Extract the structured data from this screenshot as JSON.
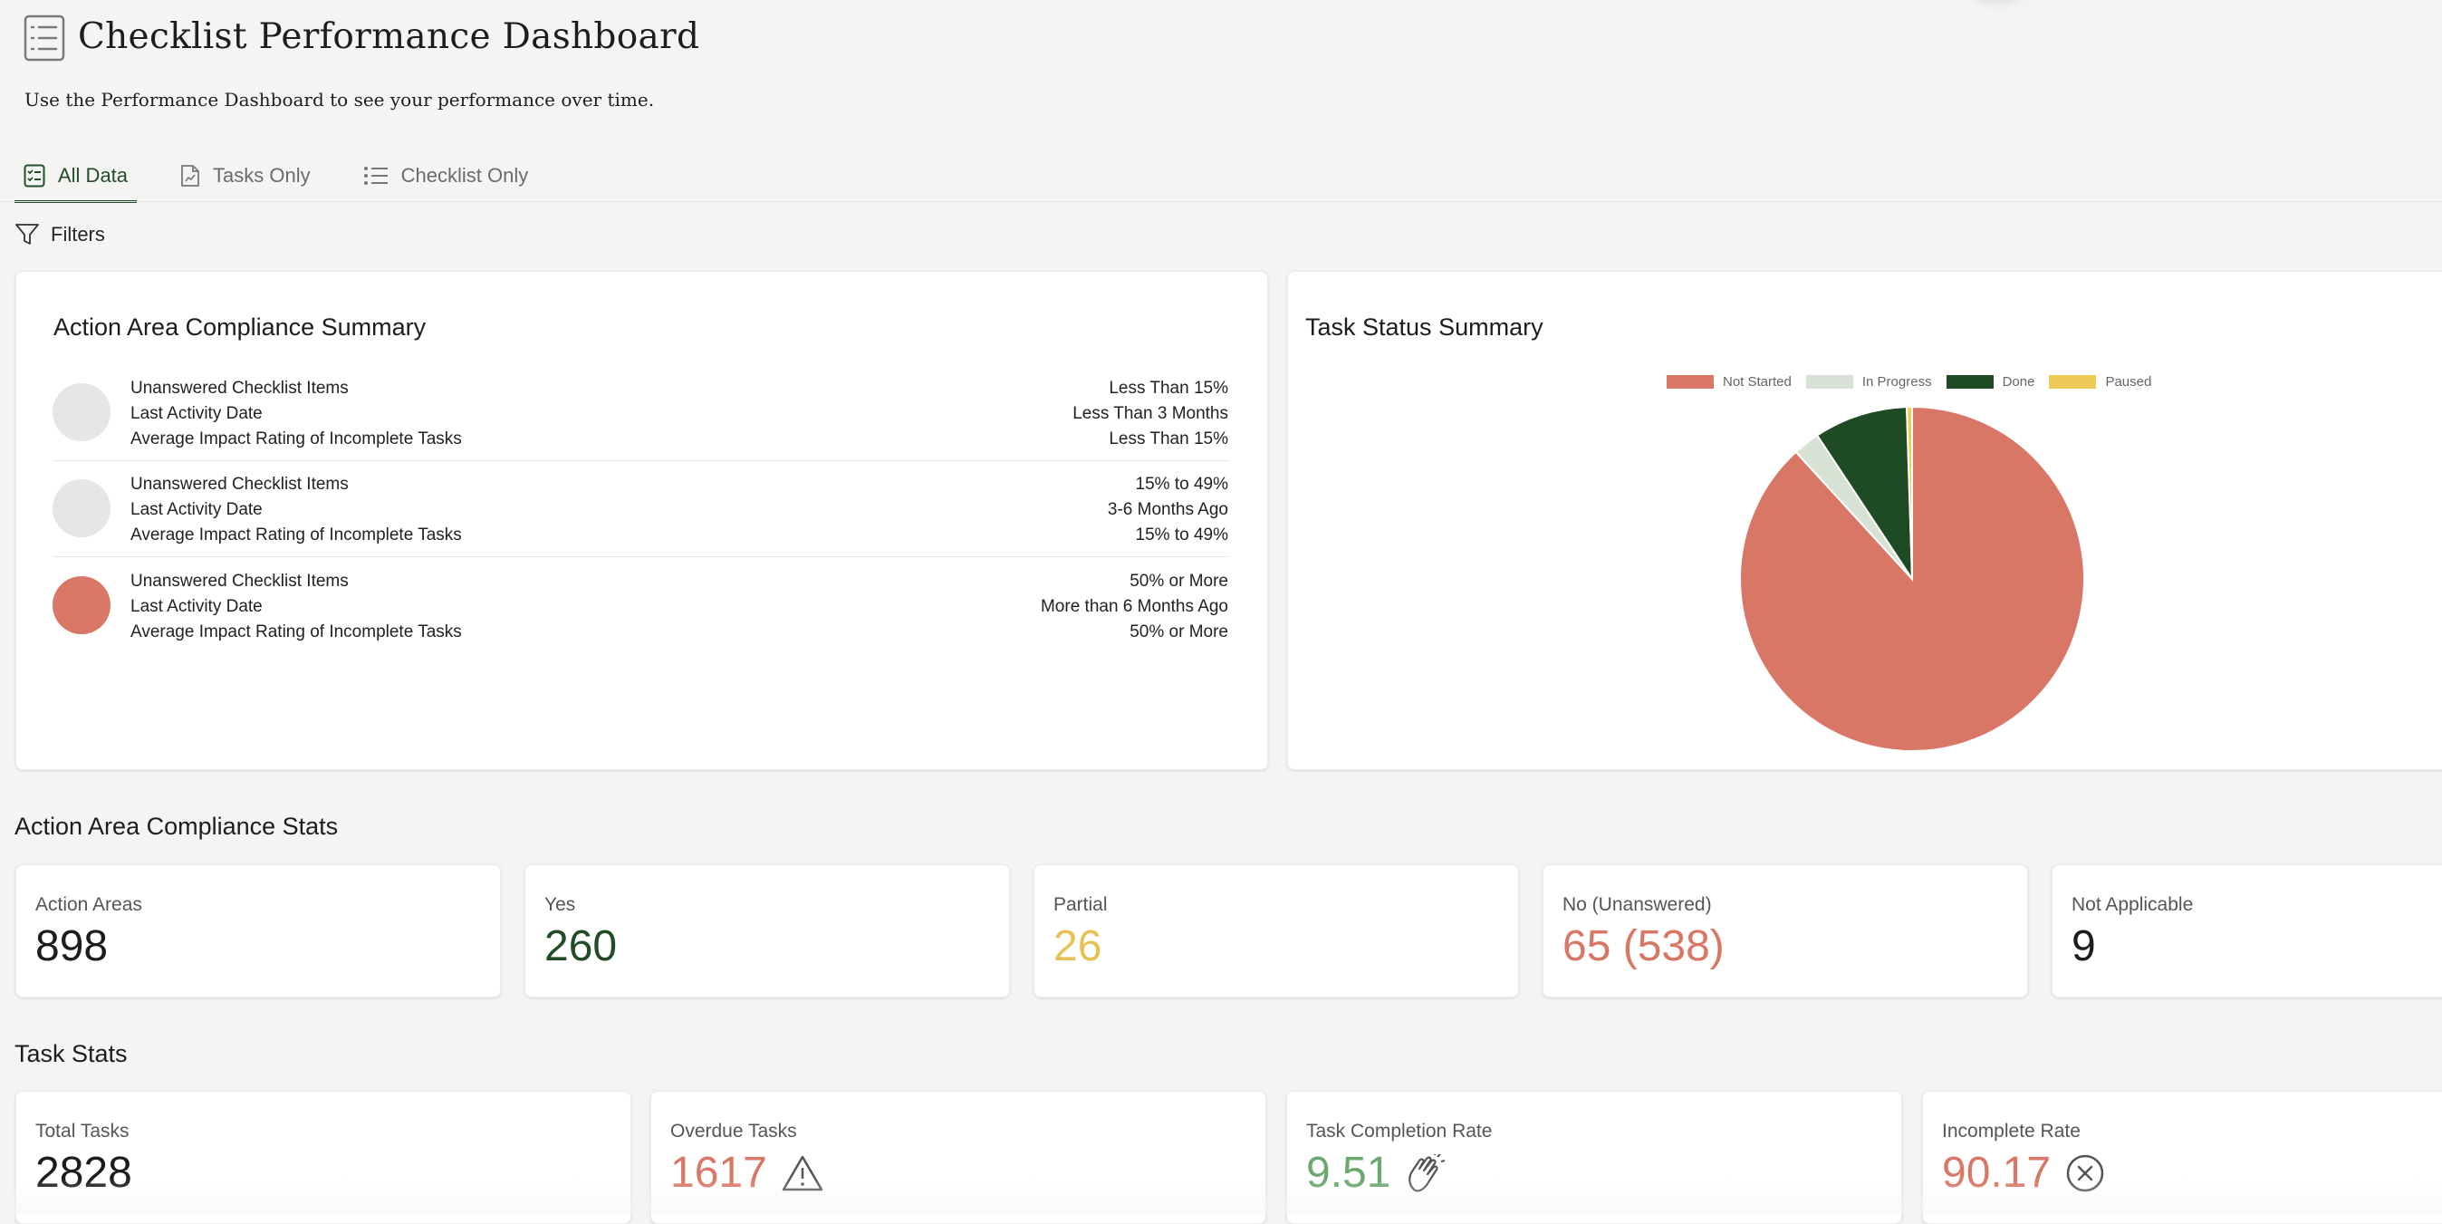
{
  "header": {
    "title": "Checklist Performance Dashboard",
    "subtitle": "Use the Performance Dashboard to see your performance over time.",
    "icon": "checklist-icon"
  },
  "tabs": [
    {
      "label": "All Data",
      "icon": "all-data-icon",
      "active": true
    },
    {
      "label": "Tasks Only",
      "icon": "document-chart-icon",
      "active": false
    },
    {
      "label": "Checklist Only",
      "icon": "list-icon",
      "active": false
    }
  ],
  "filters": {
    "label": "Filters",
    "icon": "filter-icon"
  },
  "compliance_summary": {
    "title": "Action Area Compliance Summary",
    "rows": [
      {
        "dot_color": "#e6e6e4",
        "labels": [
          "Unanswered Checklist Items",
          "Last Activity Date",
          "Average Impact Rating of Incomplete Tasks"
        ],
        "values": [
          "Less Than 15%",
          "Less Than 3 Months",
          "Less Than 15%"
        ]
      },
      {
        "dot_color": "#e6e6e4",
        "labels": [
          "Unanswered Checklist Items",
          "Last Activity Date",
          "Average Impact Rating of Incomplete Tasks"
        ],
        "values": [
          "15% to 49%",
          "3-6 Months Ago",
          "15% to 49%"
        ]
      },
      {
        "dot_color": "#d97766",
        "labels": [
          "Unanswered Checklist Items",
          "Last Activity Date",
          "Average Impact Rating of Incomplete Tasks"
        ],
        "values": [
          "50% or More",
          "More than 6 Months Ago",
          "50% or More"
        ]
      }
    ]
  },
  "task_status": {
    "title": "Task Status Summary"
  },
  "chart_data": {
    "type": "pie",
    "title": "Task Status Summary",
    "legend_position": "top",
    "labels": [
      "Not Started",
      "In Progress",
      "Done",
      "Paused"
    ],
    "values": [
      88.2,
      2.5,
      8.8,
      0.5
    ],
    "colors": [
      "#d97766",
      "#d8e1d6",
      "#1e4b24",
      "#eecb58"
    ]
  },
  "compliance_stats": {
    "title": "Action Area Compliance Stats",
    "cards": [
      {
        "label": "Action Areas",
        "value": "898",
        "color": "#1d1d1d"
      },
      {
        "label": "Yes",
        "value": "260",
        "color": "#214d26"
      },
      {
        "label": "Partial",
        "value": "26",
        "color": "#e6c154"
      },
      {
        "label": "No (Unanswered)",
        "value": "65 (538)",
        "color": "#d97766"
      },
      {
        "label": "Not Applicable",
        "value": "9",
        "color": "#1d1d1d"
      }
    ]
  },
  "task_stats": {
    "title": "Task Stats",
    "cards": [
      {
        "label": "Total Tasks",
        "value": "2828",
        "color": "#1d1d1d",
        "icon": ""
      },
      {
        "label": "Overdue Tasks",
        "value": "1617",
        "color": "#d97766",
        "icon": "warning-icon"
      },
      {
        "label": "Task Completion Rate",
        "value": "9.51",
        "color": "#6aa86d",
        "icon": "clapping-hands-icon"
      },
      {
        "label": "Incomplete Rate",
        "value": "90.17",
        "color": "#d97766",
        "icon": "x-circle-icon"
      }
    ]
  }
}
